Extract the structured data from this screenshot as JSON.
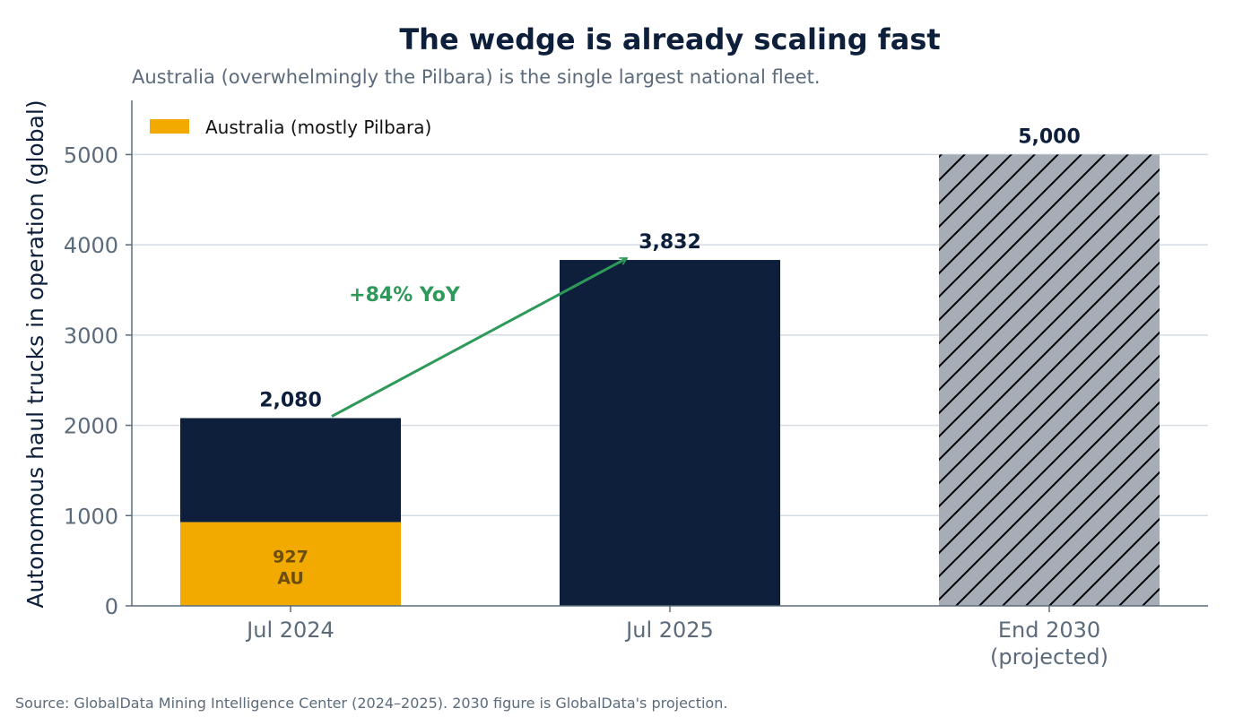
{
  "chart_data": {
    "type": "bar",
    "title": "The wedge is already scaling fast",
    "subtitle": "Australia (overwhelmingly the Pilbara) is the single largest national fleet.",
    "xlabel": "",
    "ylabel": "Autonomous haul trucks in operation (global)",
    "ylim": [
      0,
      5600
    ],
    "yticks": [
      "0",
      "1000",
      "2000",
      "3000",
      "4000",
      "5000"
    ],
    "grid": "horizontal",
    "legend_position": "top-left",
    "categories": [
      {
        "lines": [
          "Jul 2024"
        ]
      },
      {
        "lines": [
          "Jul 2025"
        ]
      },
      {
        "lines": [
          "End 2030",
          "(projected)"
        ]
      }
    ],
    "totals": [
      2080,
      3832,
      5000
    ],
    "total_labels": [
      "2,080",
      "3,832",
      "5,000"
    ],
    "series": [
      {
        "name": "Australia (mostly Pilbara)",
        "values": [
          927,
          null,
          null
        ],
        "value_labels": [
          "927",
          "",
          ""
        ],
        "value_suffix": "AU",
        "color": "#f2a900",
        "label_color": "#6b4e0a"
      }
    ],
    "bar_styles": [
      {
        "fill": "#0d1f3a",
        "hatch": false
      },
      {
        "fill": "#0d1f3a",
        "hatch": false
      },
      {
        "fill": "#a6adb7",
        "hatch": true
      }
    ],
    "annotation": {
      "text": "+84% YoY",
      "from": {
        "category": 0,
        "value": 2080
      },
      "to": {
        "category": 1,
        "value": 3832
      },
      "color": "#2e9a5a"
    },
    "colors": {
      "bar": "#0d1f3a",
      "australia": "#f2a900",
      "projected": "#a6adb7",
      "grid": "#d5dbe5",
      "axis": "#5b6b7b",
      "growth": "#2e9a5a"
    },
    "source": "Source: GlobalData Mining Intelligence Center (2024–2025). 2030 figure is GlobalData's projection."
  }
}
